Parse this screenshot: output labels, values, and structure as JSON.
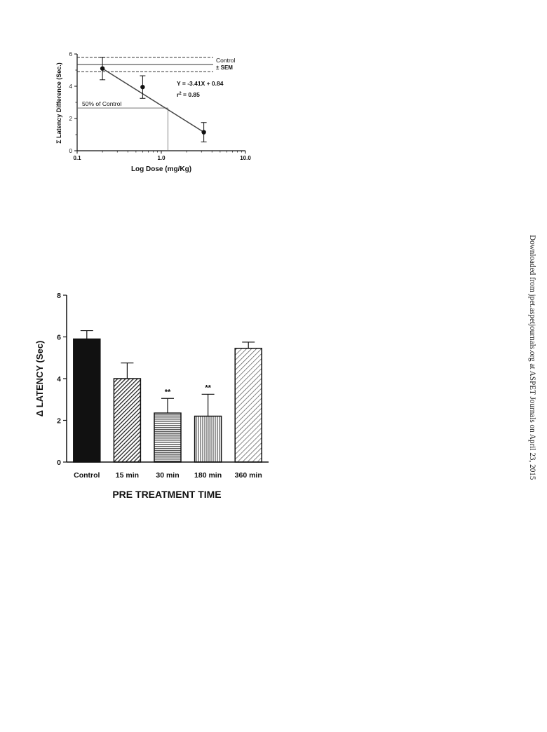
{
  "sidebar_text": "Downloaded from jpet.aspetjournals.org at ASPET Journals on April 23, 2015",
  "chart_data": [
    {
      "type": "scatter",
      "title": "",
      "xlabel": "Log Dose (mg/Kg)",
      "ylabel": "Σ Latency Difference (Sec.)",
      "x_scale": "log",
      "xlim": [
        0.1,
        10.0
      ],
      "ylim": [
        0,
        6
      ],
      "x_ticks": [
        "0.1",
        "1.0",
        "10.0"
      ],
      "y_ticks": [
        "0",
        "2",
        "4",
        "6"
      ],
      "points": [
        {
          "x": 0.2,
          "y": 5.1,
          "sem": 0.7
        },
        {
          "x": 0.6,
          "y": 3.95,
          "sem": 0.7
        },
        {
          "x": 3.2,
          "y": 1.15,
          "sem": 0.6
        }
      ],
      "regression": {
        "equation": "Y = -3.41X + 0.84",
        "r2_label": "r",
        "r2_sup": "2",
        "r2_value": " = 0.85",
        "x_from": 0.2,
        "x_to": 3.2
      },
      "control": {
        "label": "Control",
        "sem_label": "± SEM",
        "mean": 5.35,
        "upper": 5.8,
        "lower": 4.9
      },
      "half_control": {
        "label": "50% of Control",
        "y": 2.65,
        "x": 1.2
      }
    },
    {
      "type": "bar",
      "title": "",
      "xlabel": "PRE TREATMENT TIME",
      "ylabel": "Δ  LATENCY (Sec)",
      "ylim": [
        0,
        8
      ],
      "y_ticks": [
        "0",
        "2",
        "4",
        "6",
        "8"
      ],
      "categories": [
        "Control",
        "15 min",
        "30 min",
        "180 min",
        "360 min"
      ],
      "values": [
        5.9,
        4.0,
        2.35,
        2.2,
        5.45
      ],
      "errors": [
        0.4,
        0.75,
        0.7,
        1.05,
        0.3
      ],
      "significance": [
        "",
        "",
        "**",
        "**",
        ""
      ],
      "fills": [
        "solid",
        "diag-dense",
        "horizontal",
        "vertical",
        "diag-light"
      ]
    }
  ]
}
